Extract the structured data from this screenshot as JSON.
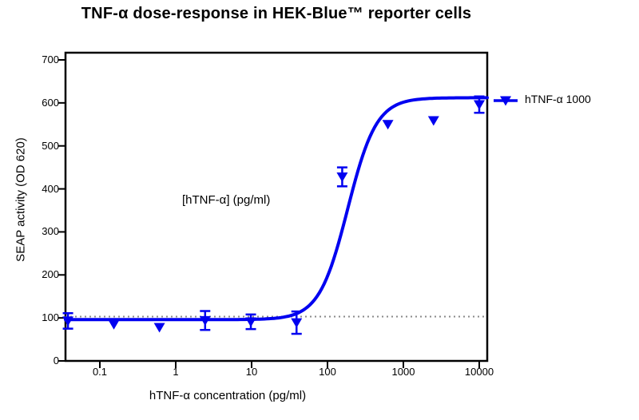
{
  "title": "TNF-α dose-response in HEK-Blue™ reporter cells",
  "annotation": "[hTNF-α] (pg/ml)",
  "legend": {
    "label": "hTNF-α 1000"
  },
  "colors": {
    "series": "#0000F0",
    "frame": "#000000",
    "baseline_dotted": "#8a8a8a",
    "background": "#ffffff"
  },
  "chart_data": {
    "type": "scatter",
    "title": "TNF-α dose-response in HEK-Blue™ reporter cells",
    "xlabel": "hTNF-α concentration (pg/ml)",
    "ylabel": "SEAP activity (OD 620)",
    "x_scale": "log",
    "x_tick_values": [
      0.1,
      1,
      10,
      100,
      1000,
      10000
    ],
    "x_tick_labels": [
      "0.1",
      "1",
      "10",
      "100",
      "1000",
      "10000"
    ],
    "y_ticks": [
      0,
      100,
      200,
      300,
      400,
      500,
      600,
      700
    ],
    "xlim": [
      0.035,
      12700
    ],
    "ylim": [
      0,
      717
    ],
    "grid": false,
    "legend_position": "right-of-plot",
    "series": [
      {
        "name": "hTNF-α 1000",
        "marker": "triangle-down",
        "color": "#0000F0",
        "points": [
          {
            "conc": 0.038,
            "response": 93,
            "err": 18
          },
          {
            "conc": 0.153,
            "response": 85,
            "err": 0
          },
          {
            "conc": 0.61,
            "response": 78,
            "err": 0
          },
          {
            "conc": 2.44,
            "response": 94,
            "err": 22
          },
          {
            "conc": 9.77,
            "response": 91,
            "err": 17
          },
          {
            "conc": 39.1,
            "response": 89,
            "err": 26
          },
          {
            "conc": 156.3,
            "response": 428,
            "err": 22
          },
          {
            "conc": 625,
            "response": 550,
            "err": 0
          },
          {
            "conc": 2500,
            "response": 559,
            "err": 0
          },
          {
            "conc": 10000,
            "response": 596,
            "err": 19
          }
        ]
      }
    ],
    "fit": {
      "model": "4PL",
      "bottom": 96,
      "top": 612,
      "ec50": 185,
      "hill": 2.3
    },
    "baseline": {
      "value": 103,
      "style": "dotted"
    }
  }
}
